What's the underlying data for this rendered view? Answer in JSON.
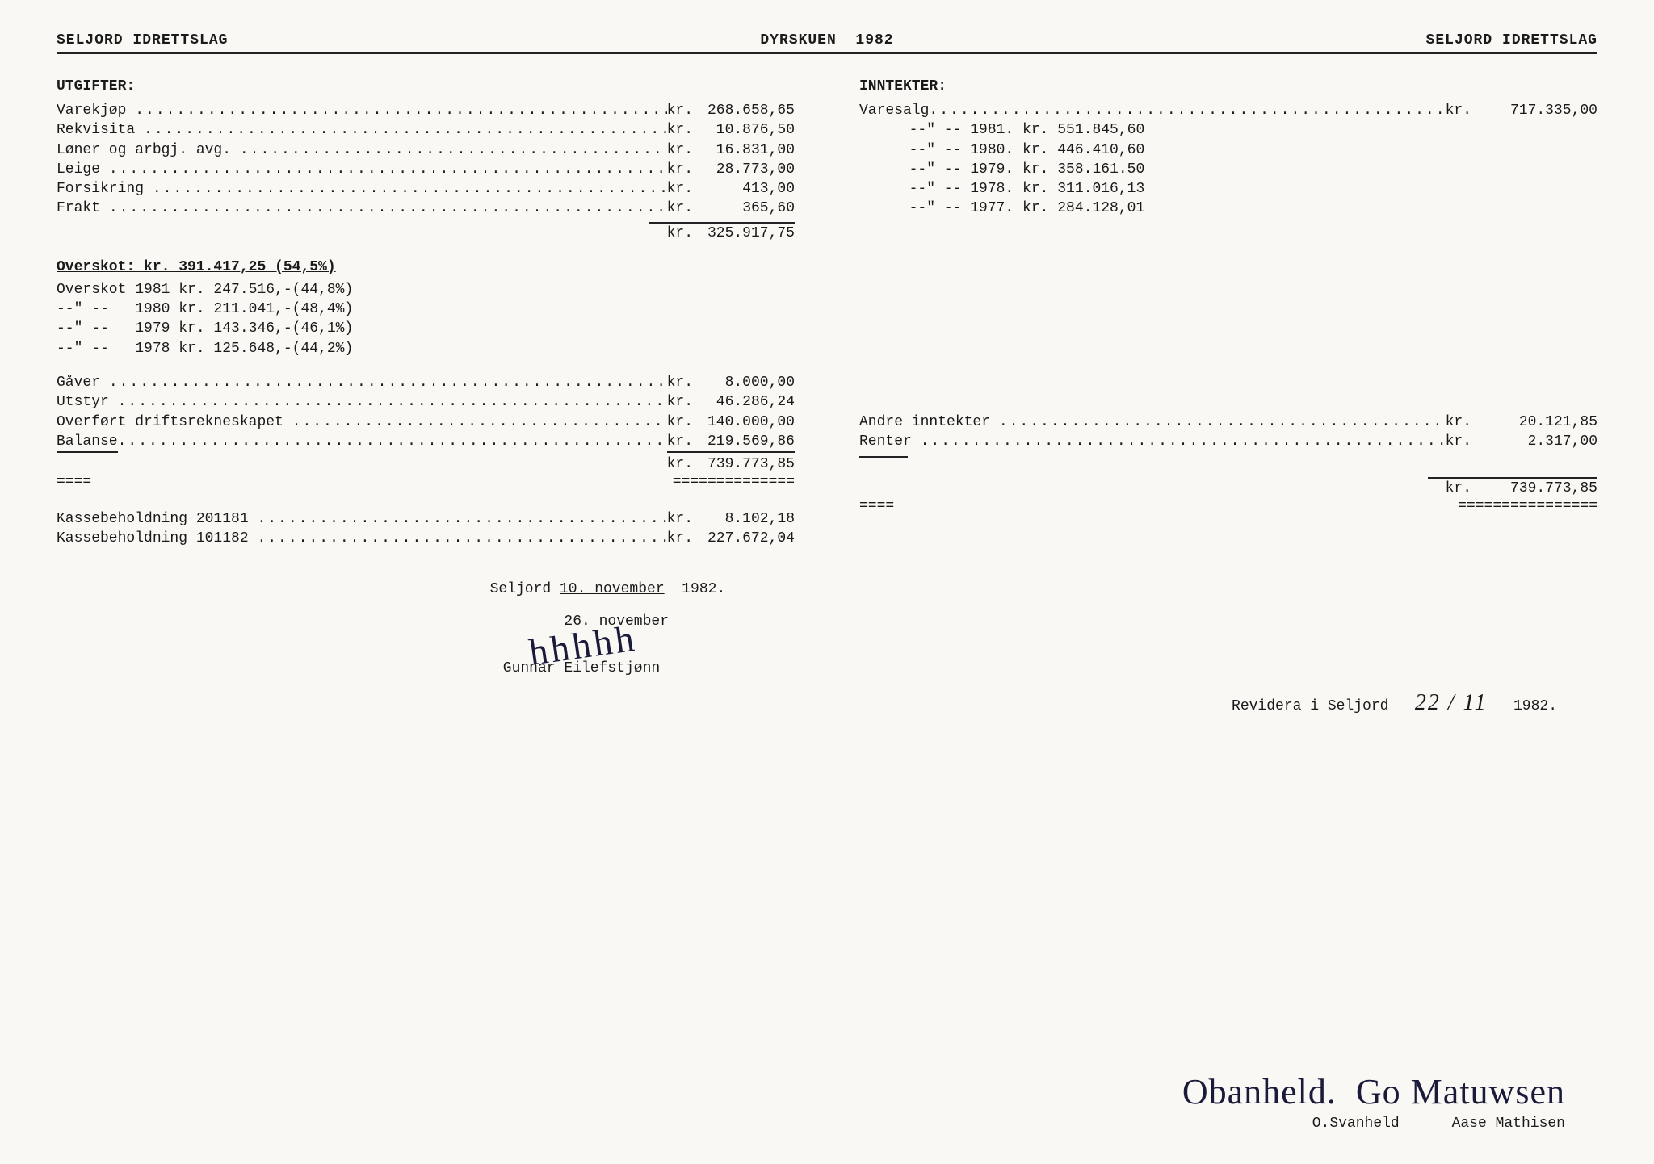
{
  "header": {
    "left": "SELJORD IDRETTSLAG",
    "center": "DYRSKUEN  1982",
    "right": "SELJORD IDRETTSLAG"
  },
  "utgifter": {
    "title": "UTGIFTER:",
    "items": [
      {
        "label": "Varekjøp",
        "amount": "268.658,65"
      },
      {
        "label": "Rekvisita",
        "amount": "10.876,50"
      },
      {
        "label": "Løner og arbgj. avg.",
        "amount": "16.831,00"
      },
      {
        "label": "Leige",
        "amount": "28.773,00"
      },
      {
        "label": "Forsikring",
        "amount": "413,00"
      },
      {
        "label": "Frakt",
        "amount": "365,60"
      }
    ],
    "sum": "325.917,75"
  },
  "overskot": {
    "headline": "Overskot: kr. 391.417,25 (54,5%)",
    "history": [
      "Overskot 1981 kr. 247.516,-(44,8%)",
      "--\" --   1980 kr. 211.041,-(48,4%)",
      "--\" --   1979 kr. 143.346,-(46,1%)",
      "--\" --   1978 kr. 125.648,-(44,2%)"
    ]
  },
  "utgifter2": {
    "items": [
      {
        "label": "Gåver",
        "amount": "8.000,00"
      },
      {
        "label": "Utstyr",
        "amount": "46.286,24"
      },
      {
        "label": "Overført driftsrekneskapet",
        "amount": "140.000,00"
      },
      {
        "label": "Balanse",
        "amount": "219.569,86",
        "underline": true
      }
    ],
    "sum": "739.773,85"
  },
  "kasse": {
    "items": [
      {
        "label": "Kassebeholdning 201181",
        "amount": "8.102,18"
      },
      {
        "label": "Kassebeholdning 101182",
        "amount": "227.672,04"
      }
    ]
  },
  "inntekter": {
    "title": "INNTEKTER:",
    "varesalg_label": "Varesalg",
    "varesalg_amount": "717.335,00",
    "history": [
      "--\" -- 1981. kr. 551.845,60",
      "--\" -- 1980. kr. 446.410,60",
      "--\" -- 1979. kr. 358.161.50",
      "--\" -- 1978. kr. 311.016,13",
      "--\" -- 1977. kr. 284.128,01"
    ],
    "other": [
      {
        "label": "Andre inntekter",
        "amount": "20.121,85"
      },
      {
        "label": "Renter",
        "amount": "2.317,00"
      }
    ],
    "sum": "739.773,85"
  },
  "signature": {
    "place": "Seljord",
    "date_struck": "10. november",
    "date_new": "26. november",
    "year": "1982.",
    "name": "Gunnar Eilefstjønn"
  },
  "revidera": {
    "text": "Revidera i Seljord",
    "hand_date": "22 / 11",
    "year": "1982."
  },
  "auditors": {
    "sig1": "Obanheld.",
    "sig2": "Go Matuwsen",
    "name1": "O.Svanheld",
    "name2": "Aase Mathisen"
  },
  "kr_label": "kr."
}
